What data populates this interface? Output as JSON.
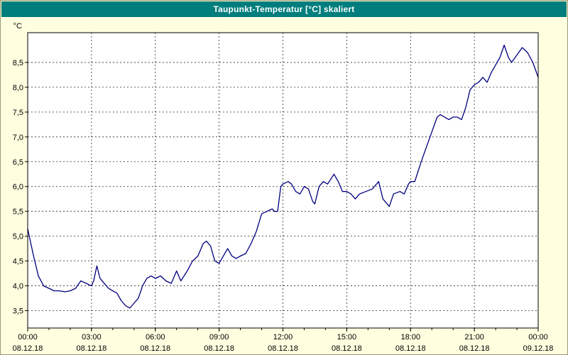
{
  "window": {
    "title": "Taupunkt-Temperatur [°C] skaliert"
  },
  "colors": {
    "titlebar_bg": "#007d7d",
    "titlebar_text": "#ffffff",
    "background": "#ffffe0",
    "plot_bg": "#ffffff",
    "grid": "#2b2b2b",
    "axis": "#000000",
    "line": "#000080"
  },
  "chart_data": {
    "type": "line",
    "title": "Taupunkt-Temperatur [°C] skaliert",
    "ylabel": "°C",
    "ylim": [
      3.15,
      9.1
    ],
    "xlim_hours": [
      0,
      24
    ],
    "grid": "dashed",
    "legend": "none",
    "y_ticks": [
      {
        "value": 3.5,
        "label": "3,5"
      },
      {
        "value": 4.0,
        "label": "4,0"
      },
      {
        "value": 4.5,
        "label": "4,5"
      },
      {
        "value": 5.0,
        "label": "5,0"
      },
      {
        "value": 5.5,
        "label": "5,5"
      },
      {
        "value": 6.0,
        "label": "6,0"
      },
      {
        "value": 6.5,
        "label": "6,5"
      },
      {
        "value": 7.0,
        "label": "7,0"
      },
      {
        "value": 7.5,
        "label": "7,5"
      },
      {
        "value": 8.0,
        "label": "8,0"
      },
      {
        "value": 8.5,
        "label": "8,5"
      }
    ],
    "x_ticks": [
      {
        "hour": 0,
        "time": "00:00",
        "date": "08.12.18"
      },
      {
        "hour": 3,
        "time": "03:00",
        "date": "08.12.18"
      },
      {
        "hour": 6,
        "time": "06:00",
        "date": "08.12.18"
      },
      {
        "hour": 9,
        "time": "09:00",
        "date": "08.12.18"
      },
      {
        "hour": 12,
        "time": "12:00",
        "date": "08.12.18"
      },
      {
        "hour": 15,
        "time": "15:00",
        "date": "08.12.18"
      },
      {
        "hour": 18,
        "time": "18:00",
        "date": "08.12.18"
      },
      {
        "hour": 21,
        "time": "21:00",
        "date": "08.12.18"
      },
      {
        "hour": 24,
        "time": "00:00",
        "date": "09.12.18"
      }
    ],
    "minor_x_step_hours": 1,
    "series": [
      {
        "name": "Taupunkt-Temperatur",
        "color": "#000080",
        "points": [
          [
            0.0,
            5.15
          ],
          [
            0.25,
            4.65
          ],
          [
            0.5,
            4.2
          ],
          [
            0.75,
            4.0
          ],
          [
            1.0,
            3.95
          ],
          [
            1.25,
            3.9
          ],
          [
            1.5,
            3.9
          ],
          [
            1.75,
            3.88
          ],
          [
            2.0,
            3.9
          ],
          [
            2.25,
            3.95
          ],
          [
            2.5,
            4.1
          ],
          [
            2.75,
            4.05
          ],
          [
            3.0,
            4.0
          ],
          [
            3.1,
            4.1
          ],
          [
            3.25,
            4.4
          ],
          [
            3.4,
            4.15
          ],
          [
            3.6,
            4.05
          ],
          [
            3.8,
            3.95
          ],
          [
            4.0,
            3.9
          ],
          [
            4.2,
            3.85
          ],
          [
            4.4,
            3.7
          ],
          [
            4.6,
            3.6
          ],
          [
            4.8,
            3.55
          ],
          [
            5.0,
            3.65
          ],
          [
            5.2,
            3.75
          ],
          [
            5.4,
            4.0
          ],
          [
            5.6,
            4.15
          ],
          [
            5.8,
            4.2
          ],
          [
            6.0,
            4.15
          ],
          [
            6.25,
            4.2
          ],
          [
            6.5,
            4.1
          ],
          [
            6.75,
            4.05
          ],
          [
            7.0,
            4.3
          ],
          [
            7.2,
            4.1
          ],
          [
            7.5,
            4.3
          ],
          [
            7.75,
            4.5
          ],
          [
            8.0,
            4.6
          ],
          [
            8.25,
            4.85
          ],
          [
            8.4,
            4.9
          ],
          [
            8.6,
            4.8
          ],
          [
            8.8,
            4.5
          ],
          [
            9.0,
            4.45
          ],
          [
            9.2,
            4.6
          ],
          [
            9.4,
            4.75
          ],
          [
            9.6,
            4.6
          ],
          [
            9.8,
            4.55
          ],
          [
            10.0,
            4.6
          ],
          [
            10.25,
            4.65
          ],
          [
            10.5,
            4.85
          ],
          [
            10.75,
            5.1
          ],
          [
            11.0,
            5.45
          ],
          [
            11.25,
            5.5
          ],
          [
            11.5,
            5.55
          ],
          [
            11.6,
            5.5
          ],
          [
            11.75,
            5.5
          ],
          [
            11.9,
            6.0
          ],
          [
            12.0,
            6.05
          ],
          [
            12.25,
            6.1
          ],
          [
            12.4,
            6.05
          ],
          [
            12.6,
            5.9
          ],
          [
            12.8,
            5.85
          ],
          [
            13.0,
            6.0
          ],
          [
            13.2,
            5.95
          ],
          [
            13.4,
            5.7
          ],
          [
            13.5,
            5.65
          ],
          [
            13.7,
            6.0
          ],
          [
            13.9,
            6.1
          ],
          [
            14.1,
            6.05
          ],
          [
            14.4,
            6.25
          ],
          [
            14.6,
            6.1
          ],
          [
            14.8,
            5.9
          ],
          [
            15.0,
            5.9
          ],
          [
            15.2,
            5.85
          ],
          [
            15.4,
            5.75
          ],
          [
            15.6,
            5.85
          ],
          [
            15.9,
            5.9
          ],
          [
            16.2,
            5.95
          ],
          [
            16.5,
            6.1
          ],
          [
            16.7,
            5.75
          ],
          [
            17.0,
            5.6
          ],
          [
            17.2,
            5.85
          ],
          [
            17.5,
            5.9
          ],
          [
            17.7,
            5.85
          ],
          [
            17.9,
            6.05
          ],
          [
            18.0,
            6.1
          ],
          [
            18.2,
            6.1
          ],
          [
            18.5,
            6.5
          ],
          [
            18.75,
            6.8
          ],
          [
            19.0,
            7.1
          ],
          [
            19.25,
            7.4
          ],
          [
            19.4,
            7.45
          ],
          [
            19.6,
            7.4
          ],
          [
            19.8,
            7.35
          ],
          [
            20.0,
            7.4
          ],
          [
            20.2,
            7.4
          ],
          [
            20.4,
            7.35
          ],
          [
            20.6,
            7.6
          ],
          [
            20.8,
            7.95
          ],
          [
            21.0,
            8.05
          ],
          [
            21.2,
            8.1
          ],
          [
            21.4,
            8.2
          ],
          [
            21.6,
            8.1
          ],
          [
            21.8,
            8.3
          ],
          [
            22.0,
            8.45
          ],
          [
            22.2,
            8.6
          ],
          [
            22.4,
            8.85
          ],
          [
            22.6,
            8.6
          ],
          [
            22.75,
            8.5
          ],
          [
            23.0,
            8.65
          ],
          [
            23.25,
            8.8
          ],
          [
            23.5,
            8.7
          ],
          [
            23.75,
            8.5
          ],
          [
            24.0,
            8.2
          ]
        ]
      }
    ]
  }
}
